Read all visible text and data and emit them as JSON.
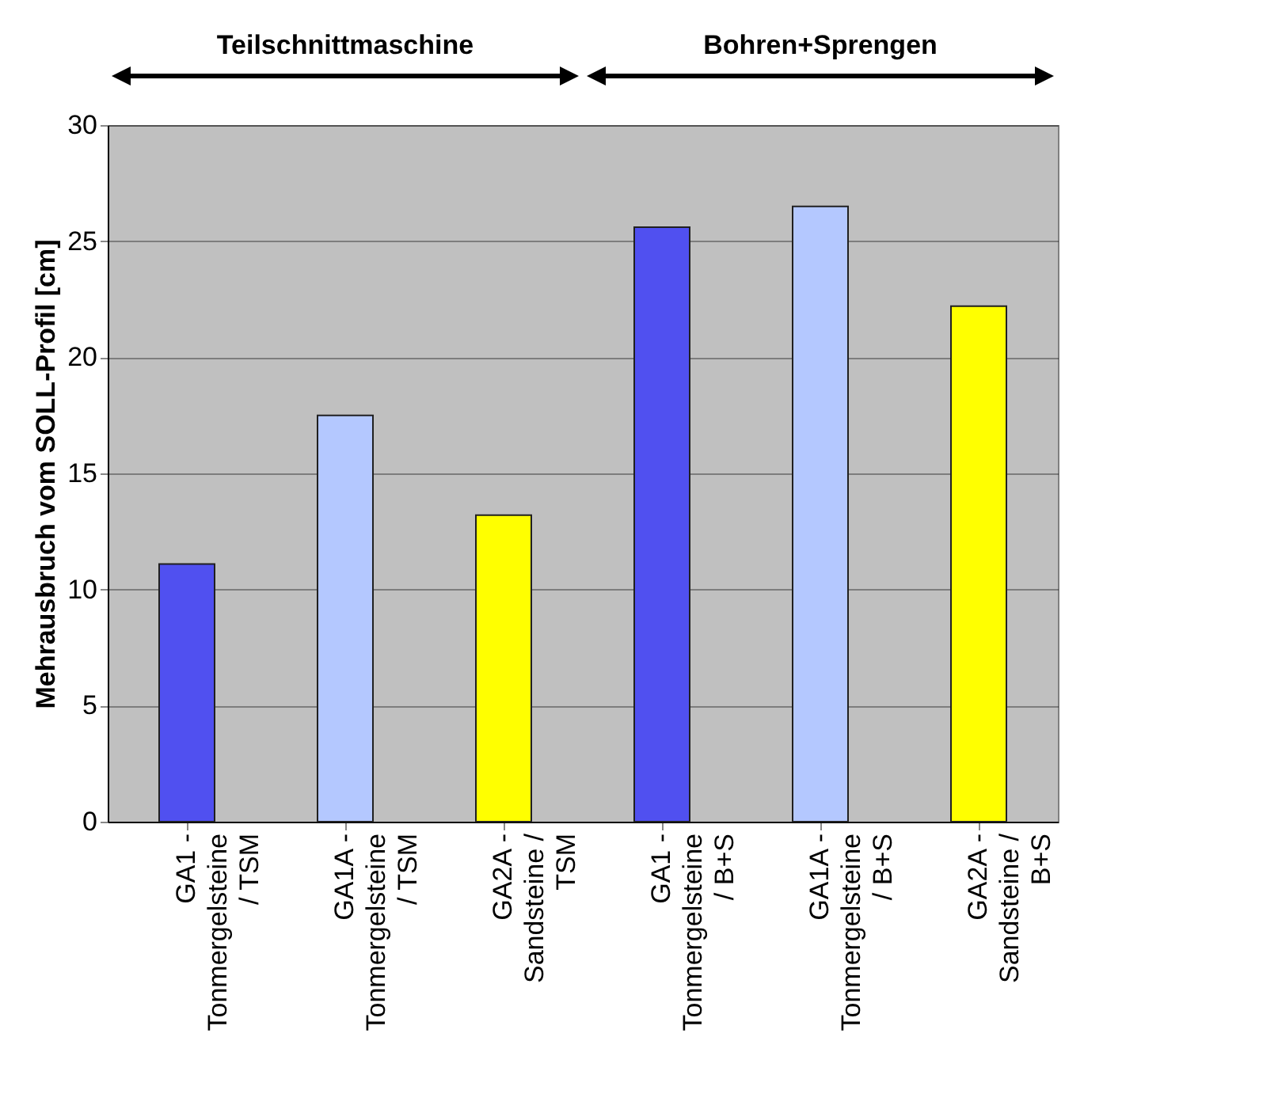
{
  "chart_data": {
    "type": "bar",
    "ylabel": "Mehrausbruch vom SOLL-Profil [cm]",
    "categories": [
      "GA1 - Tonmergelsteine / TSM",
      "GA1A - Tonmergelsteine / TSM",
      "GA2A - Sandsteine / TSM",
      "GA1 - Tonmergelsteine / B+S",
      "GA1A - Tonmergelsteine / B+S",
      "GA2A - Sandsteine / B+S"
    ],
    "values": [
      11.1,
      17.5,
      13.2,
      25.6,
      26.5,
      22.2
    ],
    "colors": [
      "#5050f0",
      "#b4c8ff",
      "#ffff00",
      "#5050f0",
      "#b4c8ff",
      "#ffff00"
    ],
    "annotations": [
      "Teilschnittmaschine",
      "Bohren+Sprengen"
    ],
    "ylim": [
      0,
      30
    ],
    "yticks": [
      0,
      5,
      10,
      15,
      20,
      25,
      30
    ],
    "grid": "y"
  }
}
